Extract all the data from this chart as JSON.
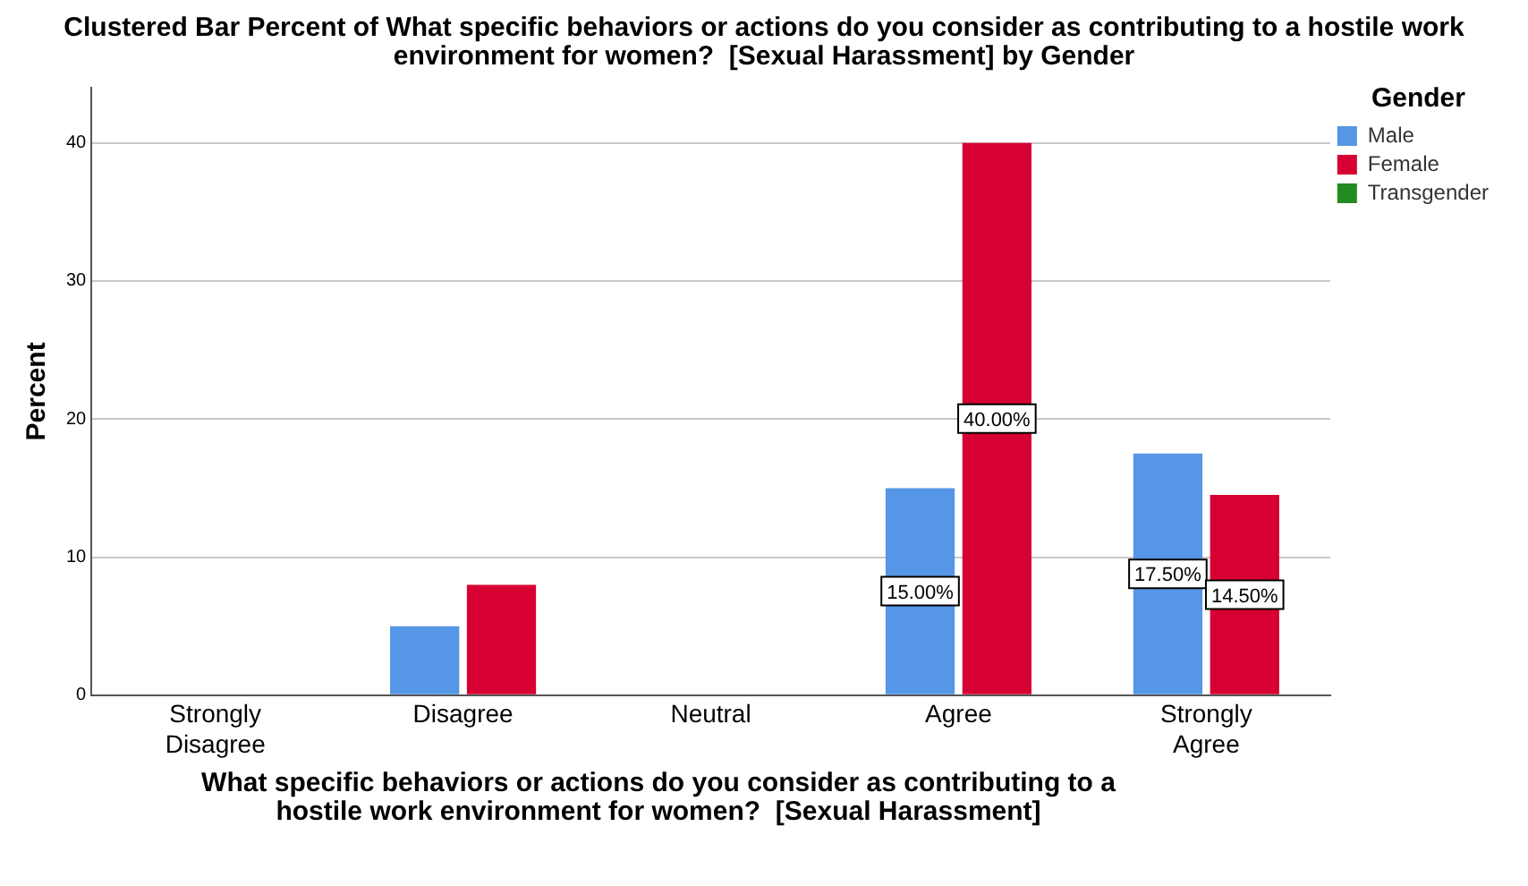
{
  "chart_data": {
    "type": "bar",
    "title": "Clustered Bar Percent of What specific behaviors or actions do you consider as contributing to a hostile work environment for women?  [Sexual Harassment] by Gender",
    "xlabel": "What specific behaviors or actions do you consider as contributing to a hostile work environment for women?  [Sexual Harassment]",
    "ylabel": "Percent",
    "legend_title": "Gender",
    "legend": "right",
    "categories": [
      "Strongly Disagree",
      "Disagree",
      "Neutral",
      "Agree",
      "Strongly Agree"
    ],
    "series": [
      {
        "name": "Male",
        "color": "#5596e6",
        "values": [
          null,
          5,
          null,
          15,
          17.5
        ],
        "value_labels": [
          null,
          null,
          null,
          "15.00%",
          "17.50%"
        ]
      },
      {
        "name": "Female",
        "color": "#d60032",
        "values": [
          null,
          8,
          null,
          40,
          14.5
        ],
        "value_labels": [
          null,
          null,
          null,
          "40.00%",
          "14.50%"
        ]
      },
      {
        "name": "Transgender",
        "color": "#228b22",
        "values": [
          null,
          null,
          null,
          null,
          null
        ]
      }
    ],
    "ylim": [
      0,
      44
    ],
    "yticks": [
      0,
      10,
      20,
      30,
      40
    ],
    "grid": "y"
  }
}
